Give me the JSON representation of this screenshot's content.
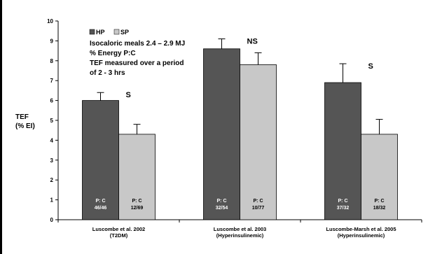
{
  "chart_data": {
    "type": "bar",
    "ylabel_line1": "TEF",
    "ylabel_line2": "(% EI)",
    "ylim": [
      0,
      10
    ],
    "yticks": [
      0,
      1,
      2,
      3,
      4,
      5,
      6,
      7,
      8,
      9,
      10
    ],
    "grid": false,
    "legend_position": "top-left",
    "categories": [
      {
        "line1": "Luscombe et al. 2002",
        "line2": "(T2DM)"
      },
      {
        "line1": "Luscombe et al. 2003",
        "line2": "(Hyperinsulinemic)"
      },
      {
        "line1": "Luscombe-Marsh et al. 2005",
        "line2": "(Hyperinsulinemic)"
      }
    ],
    "series": [
      {
        "name": "HP",
        "color": "#555555",
        "values": [
          6.0,
          8.6,
          6.9
        ],
        "errors": [
          0.4,
          0.5,
          0.95
        ],
        "bar_label_top": [
          "P: C",
          "P: C",
          "P: C"
        ],
        "bar_label_bottom": [
          "46/46",
          "32/54",
          "37/32"
        ]
      },
      {
        "name": "SP",
        "color": "#c8c8c8",
        "values": [
          4.3,
          7.8,
          4.3
        ],
        "errors": [
          0.5,
          0.6,
          0.75
        ],
        "bar_label_top": [
          "P: C",
          "P: C",
          "P: C"
        ],
        "bar_label_bottom": [
          "12/69",
          "10/77",
          "18/32"
        ]
      }
    ],
    "significance": [
      "S",
      "NS",
      "S"
    ],
    "annotations": [
      "Isocaloric meals 2.4 – 2.9 MJ",
      "% Energy P:C",
      "TEF measured over a period",
      "of 2 - 3 hrs"
    ]
  }
}
